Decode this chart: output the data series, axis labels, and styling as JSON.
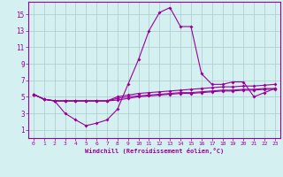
{
  "xlabel": "Windchill (Refroidissement éolien,°C)",
  "bg_color": "#d4f0f0",
  "line_color": "#990099",
  "grid_color": "#aacccc",
  "xlim": [
    -0.5,
    23.5
  ],
  "ylim": [
    0,
    16.5
  ],
  "xticks": [
    0,
    1,
    2,
    3,
    4,
    5,
    6,
    7,
    8,
    9,
    10,
    11,
    12,
    13,
    14,
    15,
    16,
    17,
    18,
    19,
    20,
    21,
    22,
    23
  ],
  "yticks": [
    1,
    3,
    5,
    7,
    9,
    11,
    13,
    15
  ],
  "series": [
    [
      5.3,
      4.7,
      4.5,
      3.0,
      2.2,
      1.5,
      1.8,
      2.2,
      3.5,
      6.5,
      9.5,
      13.0,
      15.2,
      15.8,
      13.5,
      13.5,
      7.8,
      6.5,
      6.5,
      6.8,
      6.8,
      5.0,
      5.5,
      6.0
    ],
    [
      5.3,
      4.7,
      4.5,
      4.5,
      4.5,
      4.5,
      4.5,
      4.5,
      5.0,
      5.2,
      5.4,
      5.5,
      5.6,
      5.7,
      5.8,
      5.9,
      6.0,
      6.1,
      6.2,
      6.2,
      6.3,
      6.3,
      6.4,
      6.5
    ],
    [
      5.3,
      4.7,
      4.5,
      4.5,
      4.5,
      4.5,
      4.5,
      4.5,
      4.8,
      5.0,
      5.1,
      5.2,
      5.3,
      5.4,
      5.5,
      5.5,
      5.6,
      5.7,
      5.8,
      5.8,
      5.9,
      5.9,
      6.0,
      6.0
    ],
    [
      5.3,
      4.7,
      4.5,
      4.5,
      4.5,
      4.5,
      4.5,
      4.5,
      4.6,
      4.8,
      5.0,
      5.1,
      5.2,
      5.3,
      5.4,
      5.4,
      5.5,
      5.6,
      5.7,
      5.7,
      5.8,
      5.8,
      5.9,
      5.9
    ]
  ],
  "font_family": "monospace"
}
